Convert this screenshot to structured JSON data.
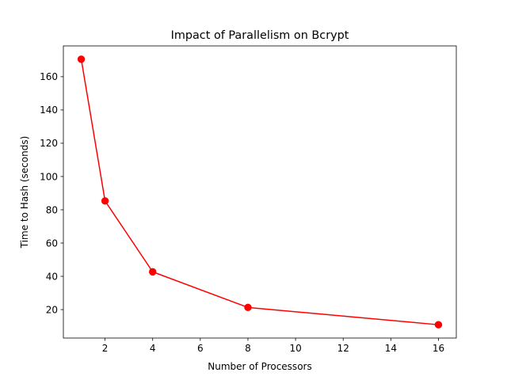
{
  "chart_data": {
    "type": "line",
    "title": "Impact of Parallelism on Bcrypt",
    "xlabel": "Number of Processors",
    "ylabel": "Time to Hash (seconds)",
    "x": [
      1,
      2,
      4,
      8,
      16
    ],
    "series": [
      {
        "values": [
          170.5,
          85.3,
          42.7,
          21.3,
          10.9
        ],
        "color": "#ff0000",
        "marker": "circle"
      }
    ],
    "xlim": [
      0.25,
      16.75
    ],
    "ylim": [
      2.9,
      178.5
    ],
    "xticks": [
      2,
      4,
      6,
      8,
      10,
      12,
      14,
      16
    ],
    "yticks": [
      20,
      40,
      60,
      80,
      100,
      120,
      140,
      160
    ],
    "grid": false,
    "legend": "none"
  }
}
